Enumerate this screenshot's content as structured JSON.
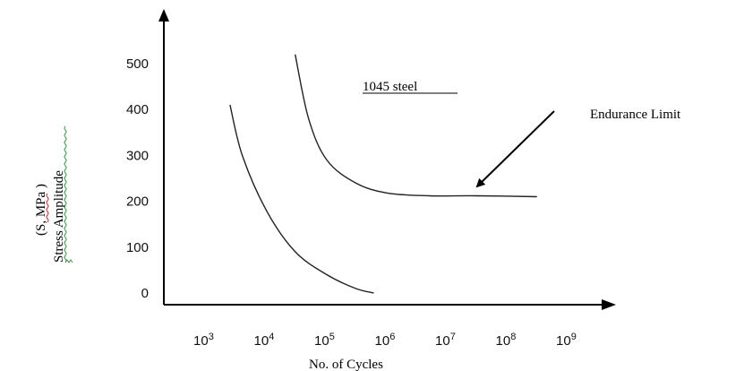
{
  "chart_data": {
    "type": "line",
    "xlabel": "No. of Cycles",
    "ylabel_line1": "Stress  Amplitude",
    "ylabel_line2": "(S, MPa )",
    "x_scale": "log",
    "x_ticks": [
      {
        "base": "10",
        "exp": "3"
      },
      {
        "base": "10",
        "exp": "4"
      },
      {
        "base": "10",
        "exp": "5"
      },
      {
        "base": "10",
        "exp": "6"
      },
      {
        "base": "10",
        "exp": "7"
      },
      {
        "base": "10",
        "exp": "8"
      },
      {
        "base": "10",
        "exp": "9"
      }
    ],
    "y_ticks": [
      "0",
      "100",
      "200",
      "300",
      "400",
      "500"
    ],
    "xlim_log10": [
      2.1,
      9.4
    ],
    "ylim": [
      0,
      580
    ],
    "grid": false,
    "series": [
      {
        "name": "",
        "x": [
          2500,
          4000,
          10000,
          30000,
          100000,
          300000,
          600000
        ],
        "y": [
          410,
          300,
          180,
          90,
          40,
          10,
          0
        ]
      },
      {
        "name": "",
        "x": [
          30000,
          50000,
          100000,
          300000,
          1000000,
          5000000,
          30000000,
          300000000
        ],
        "y": [
          520,
          380,
          290,
          240,
          218,
          212,
          212,
          210
        ]
      }
    ],
    "annotations": {
      "series_label": "1045 steel",
      "arrow_label": "Endurance Limit"
    }
  }
}
